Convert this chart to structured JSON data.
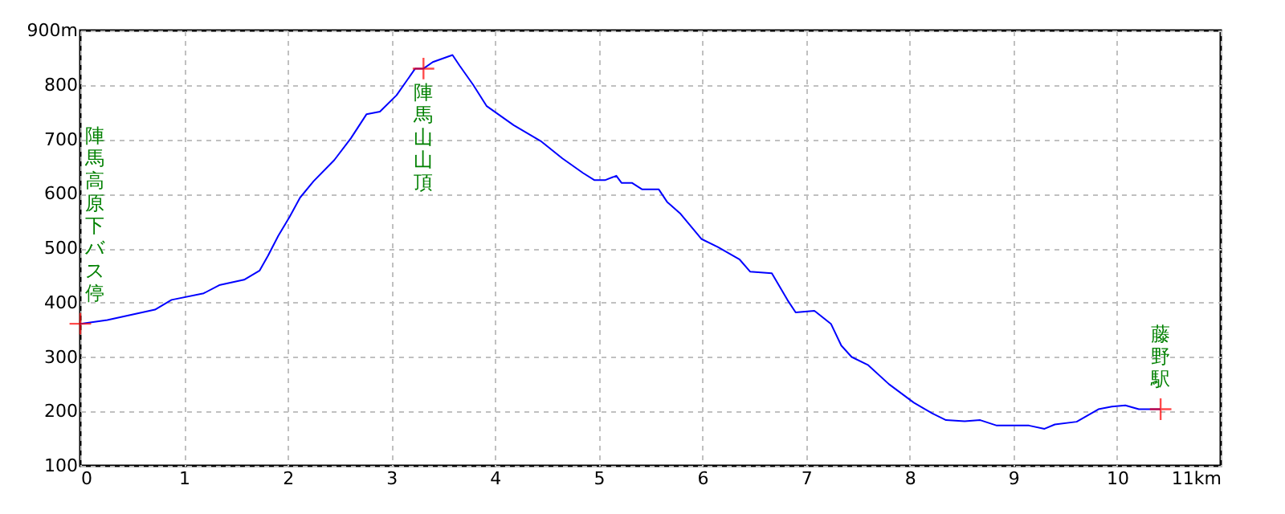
{
  "chart_data": {
    "type": "line",
    "xlim": [
      0,
      11
    ],
    "ylim": [
      100,
      900
    ],
    "xticks": [
      0,
      1,
      2,
      3,
      4,
      5,
      6,
      7,
      8,
      9,
      10,
      {
        "value": 11,
        "label": "11km"
      }
    ],
    "yticks": [
      100,
      200,
      300,
      400,
      500,
      600,
      700,
      800,
      {
        "value": 900,
        "label": "900m"
      }
    ],
    "grid": true,
    "series": [
      {
        "color": "#0000ff",
        "line_style": "solid",
        "marker": "none",
        "x": [
          0,
          0.26,
          0.72,
          0.88,
          1.19,
          1.34,
          1.58,
          1.73,
          1.81,
          1.91,
          2.02,
          2.12,
          2.25,
          2.45,
          2.61,
          2.76,
          2.89,
          3.05,
          3.23,
          3.31,
          3.4,
          3.59,
          3.66,
          3.79,
          3.92,
          4.18,
          4.44,
          4.65,
          4.85,
          4.96,
          5.06,
          5.17,
          5.22,
          5.32,
          5.42,
          5.58,
          5.66,
          5.79,
          5.99,
          6.15,
          6.36,
          6.46,
          6.67,
          6.82,
          6.9,
          7.08,
          7.24,
          7.34,
          7.44,
          7.6,
          7.8,
          8.04,
          8.22,
          8.35,
          8.53,
          8.68,
          8.84,
          9.15,
          9.3,
          9.4,
          9.61,
          9.82,
          9.95,
          10.08,
          10.21,
          10.42
        ],
        "values": [
          361,
          368,
          387,
          405,
          417,
          432,
          442,
          459,
          486,
          523,
          558,
          593,
          623,
          662,
          702,
          746,
          751,
          781,
          830,
          830,
          842,
          855,
          835,
          800,
          761,
          726,
          697,
          665,
          638,
          625,
          625,
          633,
          620,
          620,
          608,
          608,
          585,
          563,
          517,
          502,
          479,
          457,
          454,
          405,
          382,
          385,
          361,
          321,
          300,
          285,
          250,
          216,
          196,
          184,
          182,
          184,
          174,
          174,
          168,
          176,
          181,
          204,
          209,
          211,
          204,
          204
        ]
      },
      {
        "type": "scatter",
        "color": "#ff0000",
        "marker": "cross",
        "x": [
          0,
          3.31,
          10.42
        ],
        "values": [
          361,
          830,
          204
        ]
      }
    ],
    "annotations": [
      {
        "text": "陣馬高原下バス停",
        "x": 0,
        "y": 361
      },
      {
        "text": "陣馬山山頂",
        "x": 3.31,
        "y": 830
      },
      {
        "text": "藤野駅",
        "x": 10.42,
        "y": 204
      }
    ]
  }
}
